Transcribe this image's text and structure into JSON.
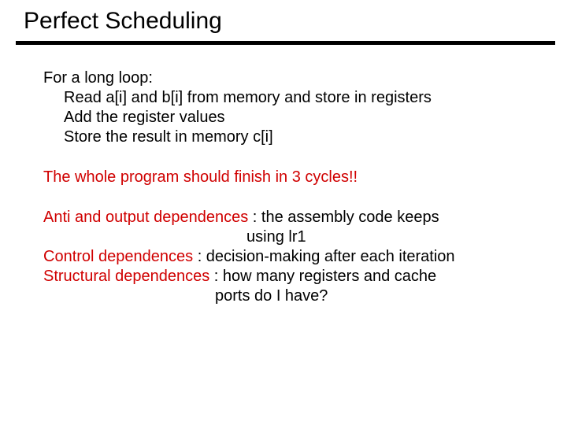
{
  "title": "Perfect Scheduling",
  "colors": {
    "title": "#000000",
    "body": "#000000",
    "highlight": "#d00000",
    "divider": "#000000",
    "background": "#ffffff"
  },
  "typography": {
    "title_fontsize": 30,
    "body_fontsize": 20,
    "font_family": "Arial"
  },
  "block1": {
    "l1": "For a long loop:",
    "l2": "Read a[i] and b[i] from memory and store in registers",
    "l3": "Add the register values",
    "l4": "Store the result in memory c[i]"
  },
  "block2": {
    "l1": "The whole program should finish in 3 cycles!!"
  },
  "block3": {
    "l1a": "Anti and output dependences",
    "l1b": " : the assembly code keeps",
    "l2": "using lr1",
    "l3a": "Control dependences",
    "l3b": " : decision-making after each iteration",
    "l4a": "Structural dependences",
    "l4b": " : how many registers and cache",
    "l5": "ports do I have?"
  }
}
